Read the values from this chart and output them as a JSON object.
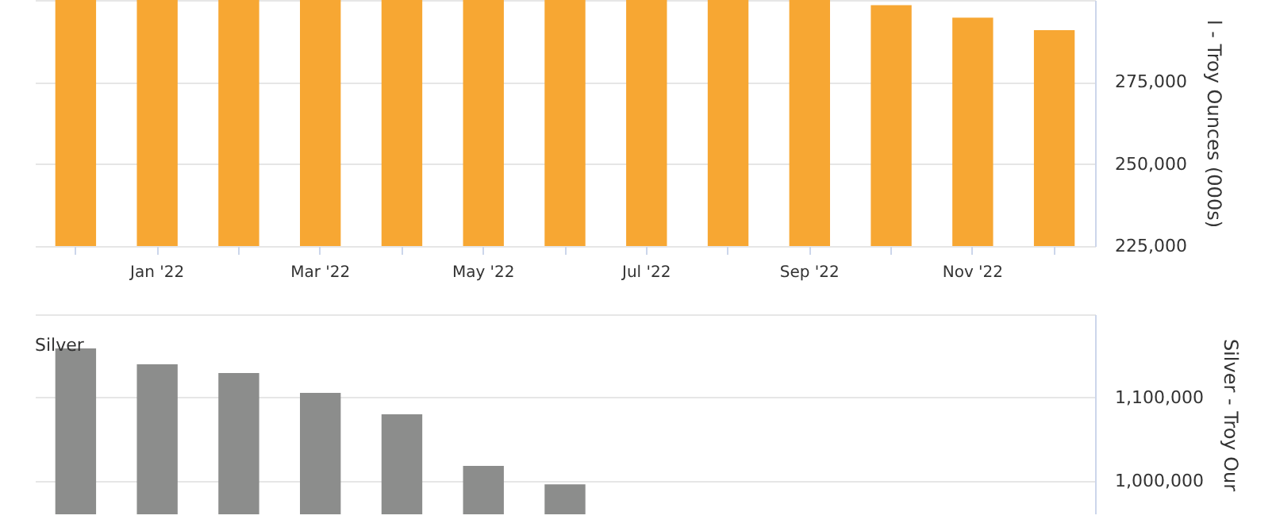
{
  "chart_data": [
    {
      "type": "bar",
      "ylabel": "l - Troy Ounces (000s)",
      "categories": [
        null,
        "Jan '22",
        null,
        "Mar '22",
        null,
        "May '22",
        null,
        "Jul '22",
        null,
        "Sep '22",
        null,
        "Nov '22",
        null
      ],
      "series": [
        {
          "color": "#f7a733",
          "values": [
            300000,
            300000,
            300000,
            300000,
            300000,
            300000,
            300000,
            300000,
            300000,
            300000,
            298400,
            294600,
            290800
          ]
        }
      ],
      "ylim": [
        225000,
        300000
      ],
      "yticks": [
        {
          "value": 225000,
          "label": "225,000"
        },
        {
          "value": 250000,
          "label": "250,000"
        },
        {
          "value": 275000,
          "label": "275,000"
        },
        {
          "value": 300000,
          "label": null
        }
      ],
      "grid": "y"
    },
    {
      "type": "bar",
      "ylabel": "Silver - Troy Our",
      "categories": [
        null,
        null,
        null,
        null,
        null,
        null,
        null,
        null,
        null,
        null,
        null,
        null,
        null
      ],
      "series": [
        {
          "name": "Silver",
          "color": "#8c8d8c",
          "values": [
            1159000,
            1140000,
            1129500,
            1105700,
            1080000,
            1018000,
            996000,
            null,
            null,
            null,
            null,
            null,
            null
          ]
        }
      ],
      "ylim": [
        960000,
        1200000
      ],
      "yticks": [
        {
          "value": 1000000,
          "label": "1,000,000"
        },
        {
          "value": 1100000,
          "label": "1,100,000"
        },
        {
          "value": 1200000,
          "label": null
        }
      ],
      "grid": "y",
      "tick_labels": "y"
    }
  ]
}
